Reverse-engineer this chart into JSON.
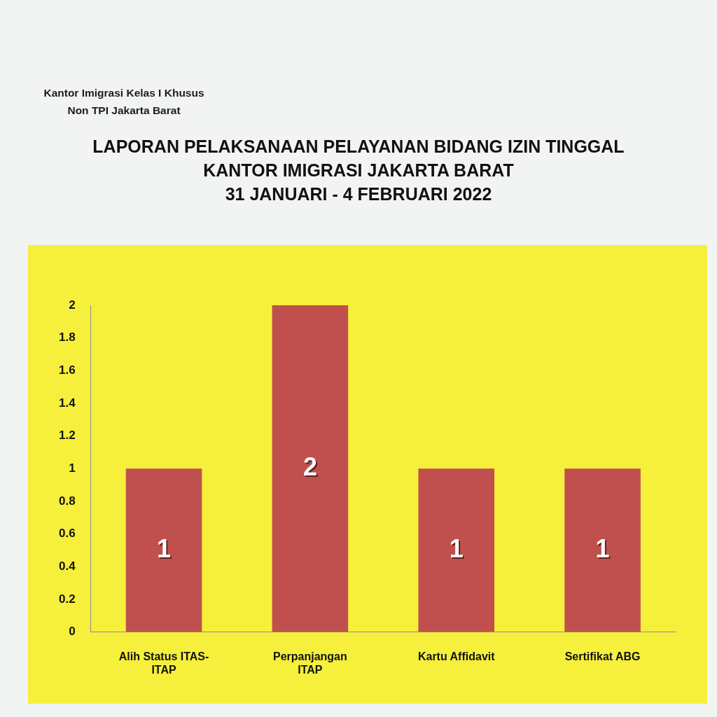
{
  "chart_data": {
    "type": "bar",
    "title": "LAPORAN PELAKSANAAN PELAYANAN BIDANG IZIN TINGGAL\nKANTOR IMIGRASI JAKARTA BARAT\n31 JANUARI - 4 FEBRUARI 2022",
    "annotations": [
      "Kantor Imigrasi Kelas I Khusus Non TPI Jakarta Barat"
    ],
    "categories": [
      "Alih Status ITAS-ITAP",
      "Perpanjangan ITAP",
      "Kartu Affidavit",
      "Sertifikat ABG"
    ],
    "values": [
      1,
      2,
      1,
      1
    ],
    "color": "#c0504d",
    "ylim": [
      0,
      2
    ],
    "yticks": [
      0,
      0.2,
      0.4,
      0.6,
      0.8,
      1,
      1.2,
      1.4,
      1.6,
      1.8,
      2
    ],
    "data_labels": true
  }
}
